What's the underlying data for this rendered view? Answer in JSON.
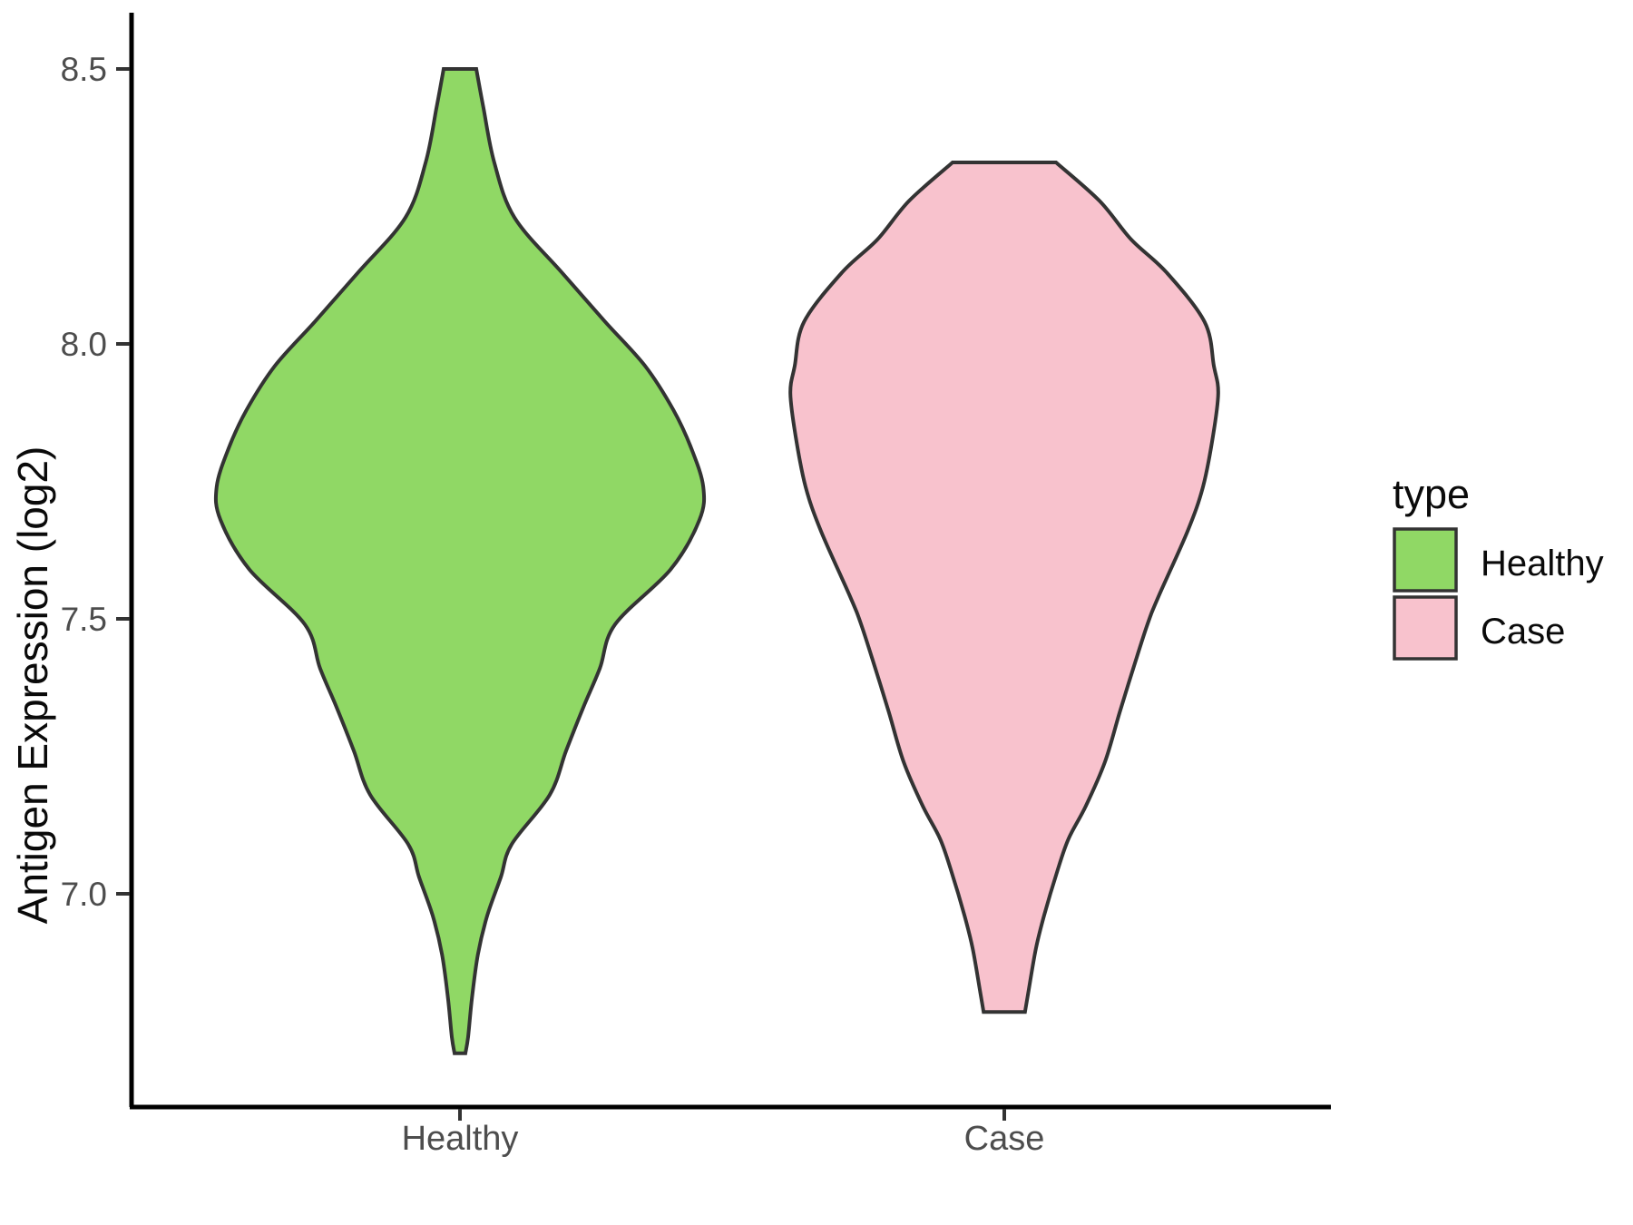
{
  "chart_data": {
    "type": "violin",
    "title": "",
    "xlabel": "",
    "ylabel": "Antigen Expression (log2)",
    "categories": [
      "Healthy",
      "Case"
    ],
    "y_ticks": [
      8.5,
      8.0,
      7.5,
      7.0
    ],
    "y_tick_labels": [
      "8.5",
      "8.0",
      "7.5",
      "7.0"
    ],
    "y_domain": [
      6.6,
      8.6
    ],
    "grid": "off",
    "outline_color": "#333333",
    "legend": {
      "title": "type",
      "position": "right",
      "entries": [
        {
          "label": "Healthy",
          "color": "#90D865"
        },
        {
          "label": "Case",
          "color": "#F8C2CD"
        }
      ]
    },
    "series": [
      {
        "name": "Healthy",
        "color": "#90D865",
        "range": [
          6.71,
          8.5
        ],
        "peak_value": 7.74,
        "max_halfwidth_units": 0.447,
        "profile": [
          [
            8.5,
            0.03
          ],
          [
            8.43,
            0.043
          ],
          [
            8.33,
            0.063
          ],
          [
            8.23,
            0.1
          ],
          [
            8.13,
            0.187
          ],
          [
            8.04,
            0.267
          ],
          [
            7.96,
            0.34
          ],
          [
            7.88,
            0.392
          ],
          [
            7.81,
            0.425
          ],
          [
            7.74,
            0.447
          ],
          [
            7.68,
            0.44
          ],
          [
            7.59,
            0.387
          ],
          [
            7.49,
            0.285
          ],
          [
            7.41,
            0.257
          ],
          [
            7.34,
            0.227
          ],
          [
            7.26,
            0.195
          ],
          [
            7.18,
            0.165
          ],
          [
            7.09,
            0.095
          ],
          [
            7.03,
            0.075
          ],
          [
            6.96,
            0.05
          ],
          [
            6.89,
            0.033
          ],
          [
            6.81,
            0.022
          ],
          [
            6.74,
            0.015
          ],
          [
            6.71,
            0.01
          ]
        ]
      },
      {
        "name": "Case",
        "color": "#F8C2CD",
        "range": [
          6.785,
          8.33
        ],
        "peak_value": 7.91,
        "max_halfwidth_units": 0.393,
        "profile": [
          [
            8.33,
            0.095
          ],
          [
            8.26,
            0.175
          ],
          [
            8.19,
            0.233
          ],
          [
            8.13,
            0.298
          ],
          [
            8.04,
            0.368
          ],
          [
            7.96,
            0.385
          ],
          [
            7.91,
            0.393
          ],
          [
            7.83,
            0.383
          ],
          [
            7.74,
            0.365
          ],
          [
            7.66,
            0.337
          ],
          [
            7.54,
            0.283
          ],
          [
            7.49,
            0.263
          ],
          [
            7.41,
            0.237
          ],
          [
            7.33,
            0.212
          ],
          [
            7.24,
            0.185
          ],
          [
            7.16,
            0.15
          ],
          [
            7.1,
            0.118
          ],
          [
            7.04,
            0.097
          ],
          [
            6.96,
            0.073
          ],
          [
            6.9,
            0.058
          ],
          [
            6.82,
            0.044
          ],
          [
            6.785,
            0.038
          ]
        ]
      }
    ]
  }
}
